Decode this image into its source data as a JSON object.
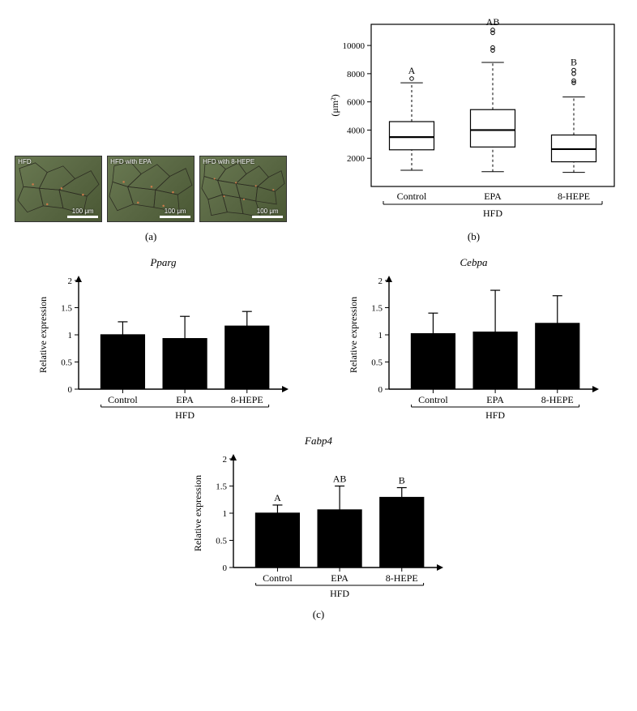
{
  "panel_a": {
    "caption": "(a)",
    "micrographs": [
      {
        "label": "HFD",
        "scale": "100 μm"
      },
      {
        "label": "HFD with EPA",
        "scale": "100 μm"
      },
      {
        "label": "HFD with 8-HEPE",
        "scale": "100 μm"
      }
    ],
    "bg_gradient": [
      "#6a7a52",
      "#4a5834"
    ],
    "cell_stroke": "#2d2d22",
    "speck_color": "#c87a4a"
  },
  "panel_b": {
    "caption": "(b)",
    "type": "boxplot",
    "ylabel": "(μm²)",
    "categories": [
      "Control",
      "EPA",
      "8-HEPE"
    ],
    "bracket_label": "HFD",
    "annotations": [
      "A",
      "AB",
      "B"
    ],
    "ylim": [
      0,
      11500
    ],
    "yticks": [
      2000,
      4000,
      6000,
      8000,
      10000
    ],
    "boxes": [
      {
        "min": 1150,
        "q1": 2600,
        "med": 3500,
        "q3": 4600,
        "max": 7350,
        "outliers": [
          7650
        ]
      },
      {
        "min": 1050,
        "q1": 2800,
        "med": 4000,
        "q3": 5450,
        "max": 8800,
        "outliers": [
          9650,
          9850,
          10900,
          11100
        ]
      },
      {
        "min": 1000,
        "q1": 1750,
        "med": 2650,
        "q3": 3650,
        "max": 6350,
        "outliers": [
          7350,
          7500,
          8000,
          8250
        ]
      }
    ],
    "box_stroke": "#000000",
    "background": "#ffffff",
    "title_fontsize": 11
  },
  "panel_c": {
    "caption": "(c)",
    "charts": [
      {
        "title": "Pparg",
        "ylabel": "Relative expression",
        "categories": [
          "Control",
          "EPA",
          "8-HEPE"
        ],
        "bracket_label": "HFD",
        "values": [
          1.01,
          0.94,
          1.17
        ],
        "err_low": [
          0.23,
          0.4,
          0.26
        ],
        "err_high": [
          0.23,
          0.4,
          0.26
        ],
        "annotations": [
          "",
          "",
          ""
        ],
        "ylim": [
          0,
          2
        ],
        "yticks": [
          0,
          0.5,
          1,
          1.5,
          2
        ]
      },
      {
        "title": "Cebpa",
        "ylabel": "Relative expression",
        "categories": [
          "Control",
          "EPA",
          "8-HEPE"
        ],
        "bracket_label": "HFD",
        "values": [
          1.03,
          1.06,
          1.22
        ],
        "err_low": [
          0.33,
          0.71,
          0.48
        ],
        "err_high": [
          0.37,
          0.76,
          0.5
        ],
        "annotations": [
          "",
          "",
          ""
        ],
        "ylim": [
          0,
          2
        ],
        "yticks": [
          0,
          0.5,
          1,
          1.5,
          2
        ]
      },
      {
        "title": "Fabp4",
        "ylabel": "Relative expression",
        "categories": [
          "Control",
          "EPA",
          "8-HEPE"
        ],
        "bracket_label": "HFD",
        "values": [
          1.01,
          1.07,
          1.3
        ],
        "err_low": [
          0.28,
          0.43,
          0.16
        ],
        "err_high": [
          0.14,
          0.43,
          0.17
        ],
        "annotations": [
          "A",
          "AB",
          "B"
        ],
        "ylim": [
          0,
          2
        ],
        "yticks": [
          0,
          0.5,
          1,
          1.5,
          2
        ]
      }
    ],
    "bar_fill": "#000000",
    "axis_color": "#000000",
    "tick_fontsize": 11
  }
}
